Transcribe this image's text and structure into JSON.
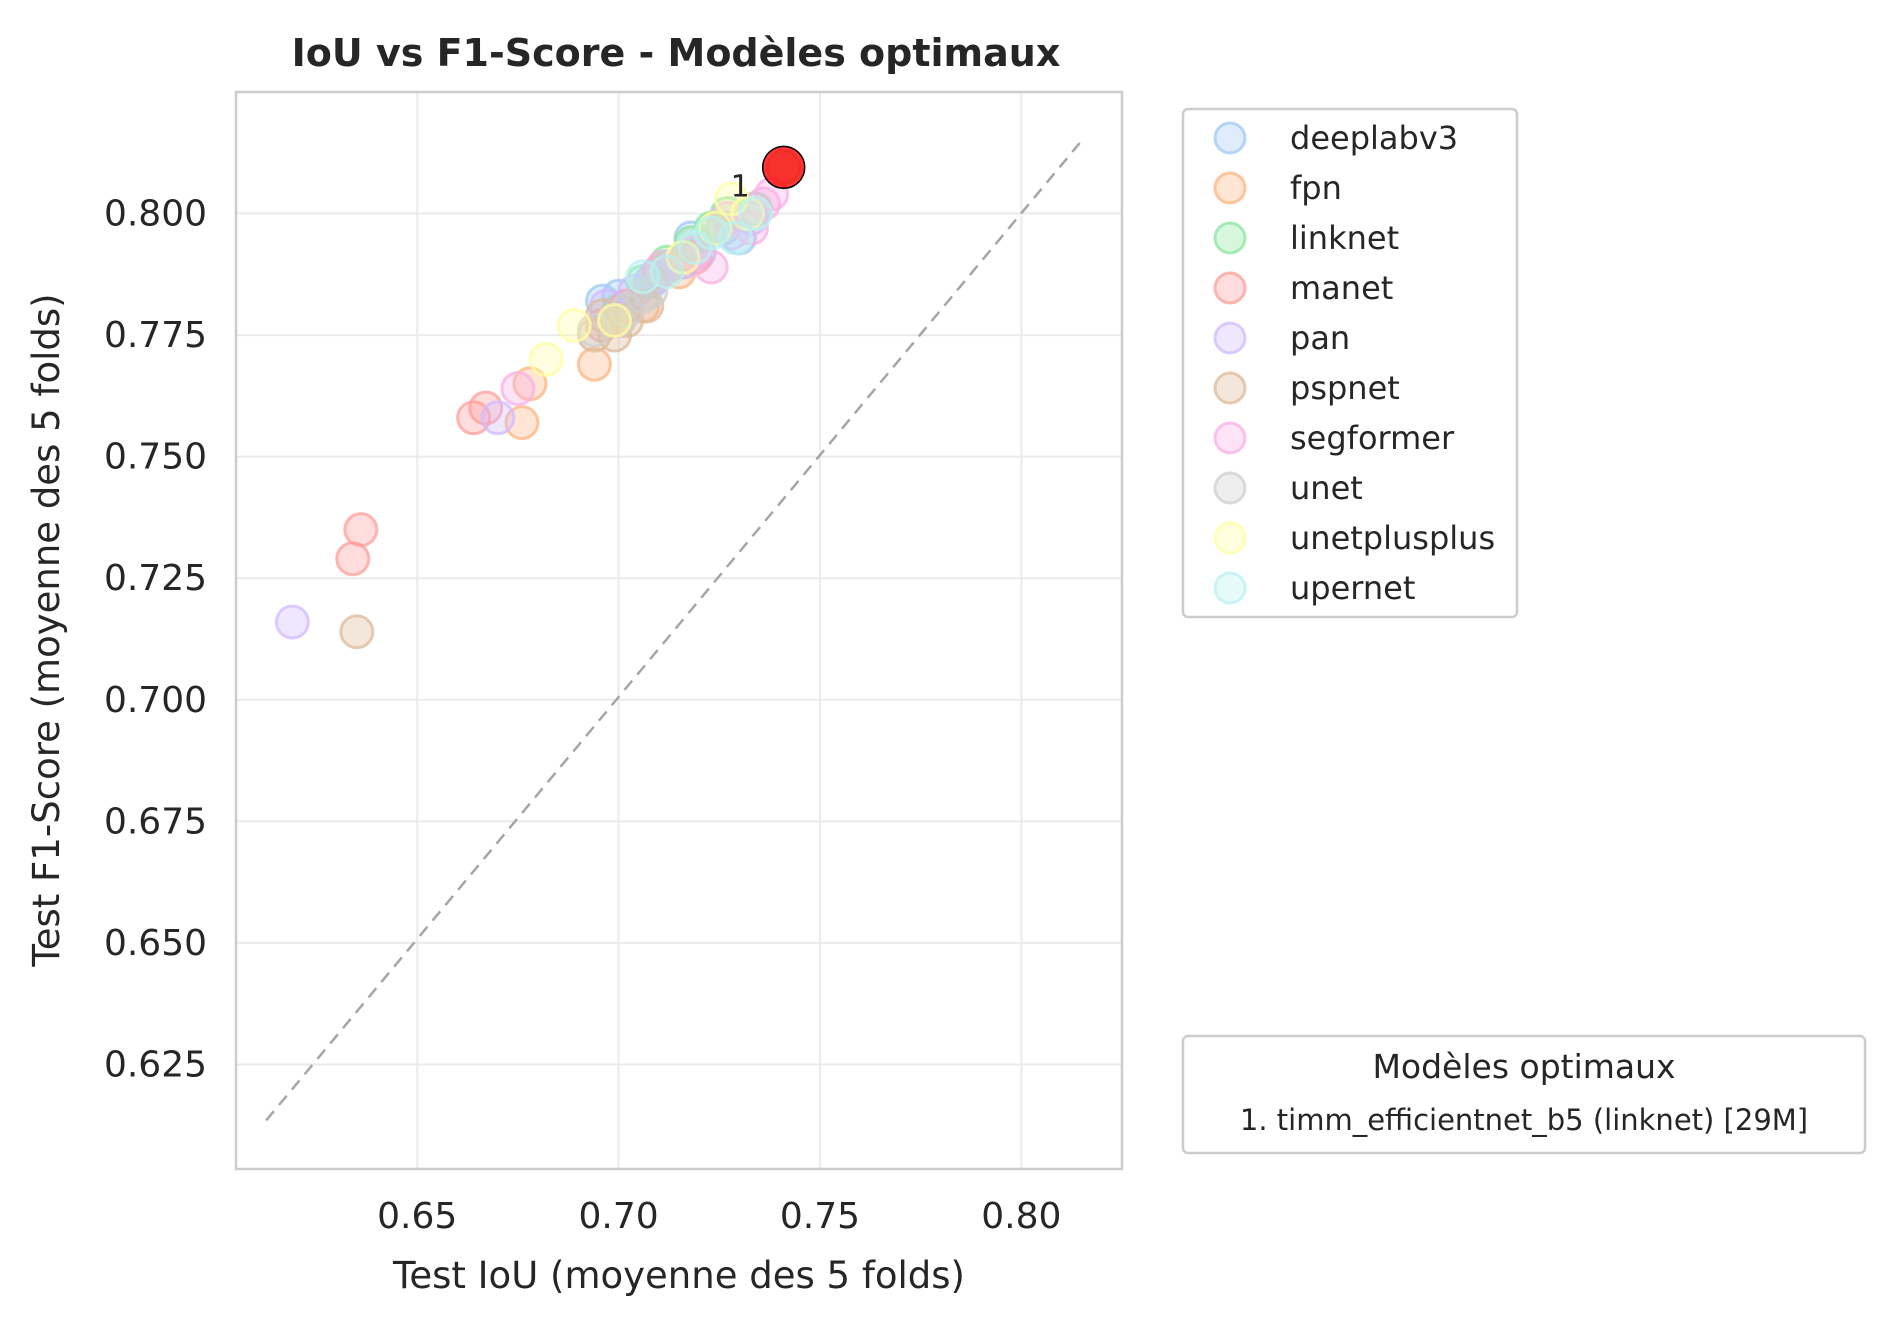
{
  "chart_data": {
    "type": "scatter",
    "title": "IoU vs F1-Score - Modèles optimaux",
    "xlabel": "Test IoU (moyenne des 5 folds)",
    "ylabel": "Test F1-Score (moyenne des 5 folds)",
    "xlim": [
      0.605,
      0.825
    ],
    "ylim": [
      0.6035,
      0.825
    ],
    "xticks": [
      0.65,
      0.7,
      0.75,
      0.8
    ],
    "xtick_labels": [
      "0.65",
      "0.70",
      "0.75",
      "0.80"
    ],
    "yticks": [
      0.625,
      0.65,
      0.675,
      0.7,
      0.725,
      0.75,
      0.775,
      0.8
    ],
    "ytick_labels": [
      "0.625",
      "0.650",
      "0.675",
      "0.700",
      "0.725",
      "0.750",
      "0.775",
      "0.800"
    ],
    "grid": true,
    "reference_line": {
      "style": "dashed",
      "color": "#a6a6a6",
      "from": [
        0.6125,
        0.6135
      ],
      "to": [
        0.8145,
        0.8145
      ]
    },
    "legend_placement": "outside-right-top",
    "series": [
      {
        "name": "deeplabv3",
        "color": "#a1c9f4",
        "points": [
          [
            0.696,
            0.782
          ],
          [
            0.7,
            0.783
          ],
          [
            0.718,
            0.795
          ],
          [
            0.72,
            0.792
          ],
          [
            0.726,
            0.797
          ],
          [
            0.73,
            0.795
          ],
          [
            0.712,
            0.789
          ],
          [
            0.708,
            0.786
          ]
        ]
      },
      {
        "name": "fpn",
        "color": "#ffb482",
        "points": [
          [
            0.678,
            0.765
          ],
          [
            0.676,
            0.757
          ],
          [
            0.694,
            0.769
          ],
          [
            0.715,
            0.788
          ],
          [
            0.706,
            0.781
          ],
          [
            0.724,
            0.797
          ],
          [
            0.716,
            0.79
          ],
          [
            0.7,
            0.778
          ]
        ]
      },
      {
        "name": "linknet",
        "color": "#8de5a1",
        "points": [
          [
            0.741,
            0.8095
          ],
          [
            0.718,
            0.794
          ],
          [
            0.723,
            0.797
          ],
          [
            0.727,
            0.8
          ],
          [
            0.706,
            0.786
          ],
          [
            0.712,
            0.79
          ],
          [
            0.7,
            0.78
          ],
          [
            0.734,
            0.801
          ]
        ]
      },
      {
        "name": "manet",
        "color": "#ff9f9b",
        "points": [
          [
            0.636,
            0.735
          ],
          [
            0.634,
            0.729
          ],
          [
            0.664,
            0.758
          ],
          [
            0.667,
            0.76
          ],
          [
            0.71,
            0.788
          ],
          [
            0.702,
            0.781
          ],
          [
            0.719,
            0.791
          ],
          [
            0.696,
            0.777
          ]
        ]
      },
      {
        "name": "pan",
        "color": "#d0bbff",
        "points": [
          [
            0.619,
            0.716
          ],
          [
            0.67,
            0.758
          ],
          [
            0.697,
            0.781
          ],
          [
            0.704,
            0.784
          ],
          [
            0.716,
            0.79
          ],
          [
            0.728,
            0.796
          ],
          [
            0.733,
            0.799
          ],
          [
            0.709,
            0.787
          ]
        ]
      },
      {
        "name": "pspnet",
        "color": "#debb9b",
        "points": [
          [
            0.635,
            0.714
          ],
          [
            0.694,
            0.775
          ],
          [
            0.699,
            0.775
          ],
          [
            0.707,
            0.781
          ],
          [
            0.702,
            0.778
          ],
          [
            0.696,
            0.779
          ]
        ]
      },
      {
        "name": "segformer",
        "color": "#fab0e4",
        "points": [
          [
            0.675,
            0.764
          ],
          [
            0.723,
            0.789
          ],
          [
            0.711,
            0.789
          ],
          [
            0.733,
            0.797
          ],
          [
            0.738,
            0.804
          ],
          [
            0.719,
            0.792
          ],
          [
            0.736,
            0.802
          ],
          [
            0.727,
            0.799
          ]
        ]
      },
      {
        "name": "unet",
        "color": "#cfcfcf",
        "points": [
          [
            0.706,
            0.783
          ],
          [
            0.702,
            0.78
          ],
          [
            0.7,
            0.778
          ],
          [
            0.712,
            0.789
          ],
          [
            0.708,
            0.784
          ],
          [
            0.694,
            0.776
          ]
        ]
      },
      {
        "name": "unetplusplus",
        "color": "#fffea3",
        "points": [
          [
            0.682,
            0.77
          ],
          [
            0.689,
            0.777
          ],
          [
            0.699,
            0.778
          ],
          [
            0.728,
            0.803
          ],
          [
            0.724,
            0.797
          ],
          [
            0.716,
            0.791
          ],
          [
            0.732,
            0.8
          ]
        ]
      },
      {
        "name": "upernet",
        "color": "#b9f2f0",
        "points": [
          [
            0.706,
            0.787
          ],
          [
            0.719,
            0.793
          ],
          [
            0.729,
            0.795
          ],
          [
            0.712,
            0.788
          ],
          [
            0.734,
            0.8
          ],
          [
            0.723,
            0.796
          ]
        ]
      }
    ],
    "highlight": {
      "label": "1",
      "x": 0.741,
      "y": 0.8095,
      "color": "#ff0000"
    },
    "optimal_legend": {
      "title": "Modèles optimaux",
      "entries": [
        "1. timm_efficientnet_b5 (linknet) [29M]"
      ]
    }
  }
}
